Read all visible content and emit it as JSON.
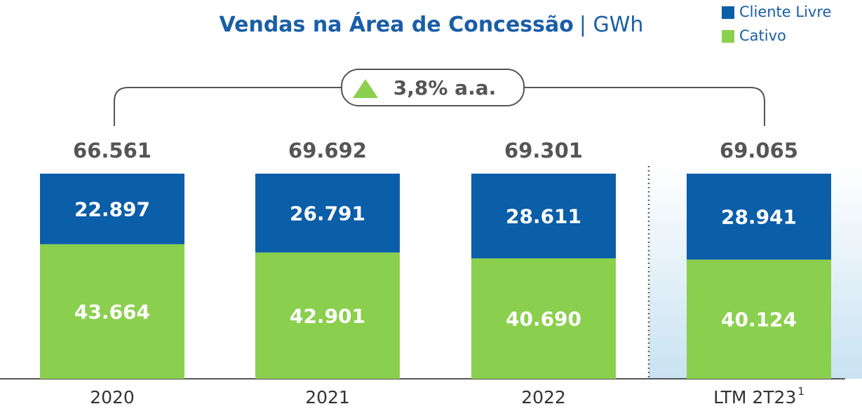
{
  "chart_data": {
    "type": "bar",
    "stacked": true,
    "normalized": true,
    "title": "Vendas na Área de Concessão",
    "unit_label": "| GWh",
    "categories": [
      "2020",
      "2021",
      "2022",
      "LTM 2T23"
    ],
    "category_footnotes": [
      null,
      null,
      null,
      "1"
    ],
    "series": [
      {
        "name": "Cliente Livre",
        "color": "#0b5ea8",
        "values": [
          22897,
          26791,
          28611,
          28941
        ],
        "value_labels": [
          "22.897",
          "26.791",
          "28.611",
          "28.941"
        ]
      },
      {
        "name": "Cativo",
        "color": "#8bcf4e",
        "values": [
          43664,
          42901,
          40690,
          40124
        ],
        "value_labels": [
          "43.664",
          "42.901",
          "40.690",
          "40.124"
        ]
      }
    ],
    "totals": [
      66561,
      69692,
      69301,
      69065
    ],
    "totals_labels": [
      "66.561",
      "69.692",
      "69.301",
      "69.065"
    ],
    "annotation": "3,8% a.a.",
    "legend": "top-right"
  }
}
